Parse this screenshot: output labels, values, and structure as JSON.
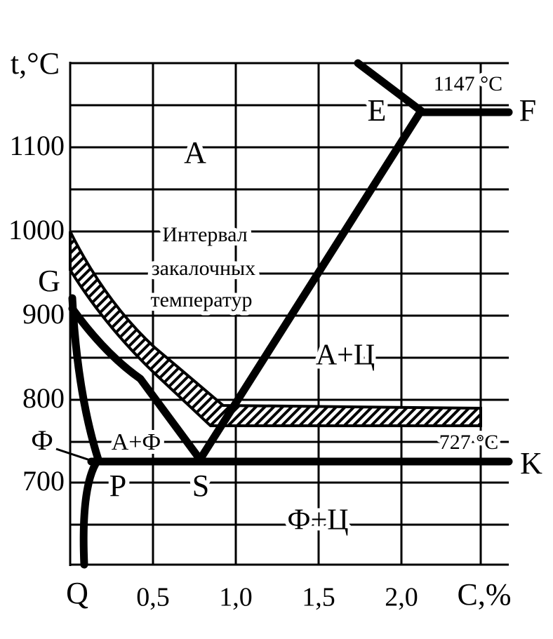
{
  "axis": {
    "y_label": "t,°C",
    "y_ticks": [
      "1100",
      "1000",
      "900",
      "800",
      "700"
    ],
    "x_ticks": [
      "Q",
      "0,5",
      "1,0",
      "1,5",
      "2,0",
      "C,%"
    ]
  },
  "points": [
    "E",
    "F",
    "G",
    "P",
    "S",
    "K",
    "Ф"
  ],
  "regions": [
    "A",
    "A+Ц",
    "A+Ф",
    "Ф+Ц"
  ],
  "hardening_interval": [
    "Интервал",
    "закалочных",
    "температур"
  ],
  "temperatures": [
    "1147 °C",
    "727 °C"
  ]
}
